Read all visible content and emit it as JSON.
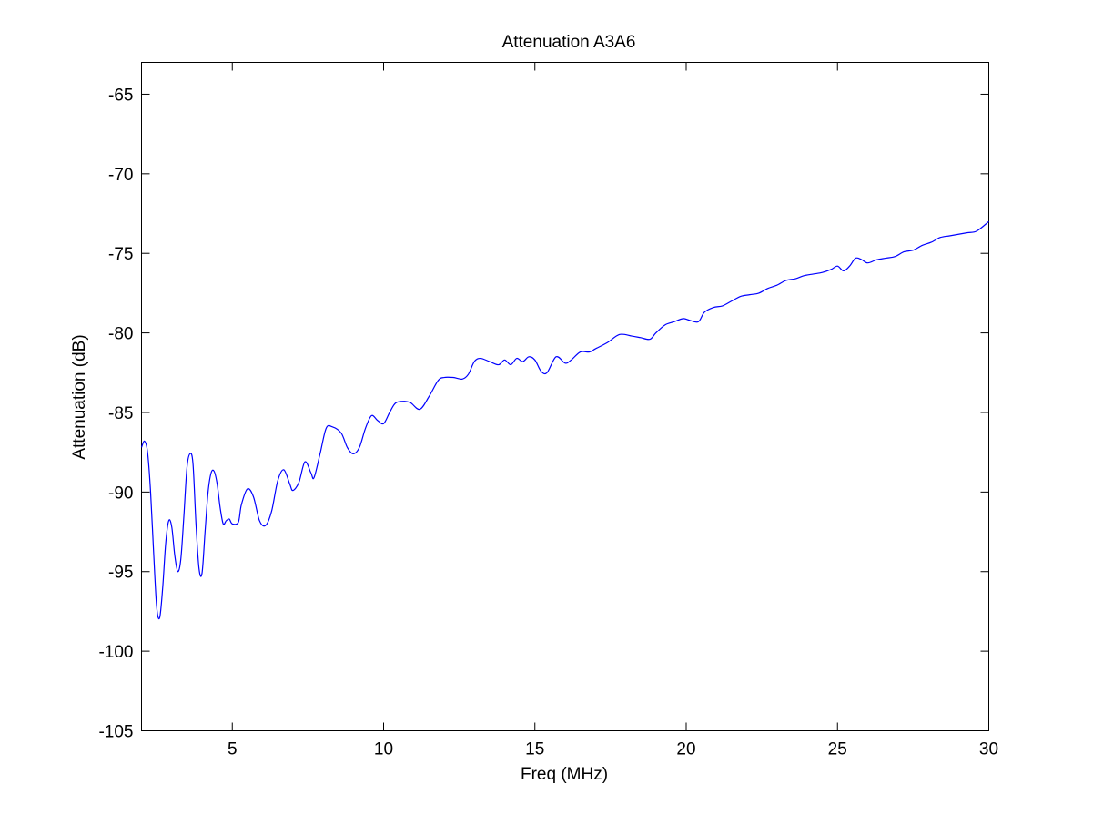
{
  "chart_data": {
    "type": "line",
    "title": "Attenuation A3A6",
    "xlabel": "Freq (MHz)",
    "ylabel": "Attenuation (dB)",
    "xlim": [
      2,
      30
    ],
    "ylim": [
      -105,
      -63
    ],
    "xticks": [
      5,
      10,
      15,
      20,
      25,
      30
    ],
    "yticks": [
      -65,
      -70,
      -75,
      -80,
      -85,
      -90,
      -95,
      -100,
      -105
    ],
    "xtick_labels": [
      "5",
      "10",
      "15",
      "20",
      "25",
      "30"
    ],
    "ytick_labels": [
      "-65",
      "-70",
      "-75",
      "-80",
      "-85",
      "-90",
      "-95",
      "-100",
      "-105"
    ],
    "grid": false,
    "legend": "none",
    "colors": {
      "line": "#0000ff",
      "axes": "#000000",
      "background": "#ffffff"
    },
    "series": [
      {
        "x": [
          2.0,
          2.1,
          2.2,
          2.3,
          2.4,
          2.5,
          2.6,
          2.7,
          2.8,
          2.9,
          3.0,
          3.1,
          3.2,
          3.3,
          3.4,
          3.5,
          3.6,
          3.7,
          3.8,
          3.9,
          4.0,
          4.1,
          4.2,
          4.3,
          4.4,
          4.5,
          4.6,
          4.7,
          4.8,
          4.9,
          5.0,
          5.2,
          5.3,
          5.5,
          5.7,
          5.9,
          6.1,
          6.3,
          6.5,
          6.7,
          6.9,
          7.0,
          7.2,
          7.4,
          7.6,
          7.7,
          7.9,
          8.1,
          8.3,
          8.6,
          8.8,
          9.0,
          9.2,
          9.4,
          9.6,
          9.8,
          10.0,
          10.2,
          10.4,
          10.7,
          10.9,
          11.2,
          11.5,
          11.8,
          12.0,
          12.3,
          12.6,
          12.8,
          13.0,
          13.2,
          13.5,
          13.8,
          14.0,
          14.2,
          14.4,
          14.6,
          14.8,
          15.0,
          15.2,
          15.4,
          15.7,
          16.0,
          16.2,
          16.5,
          16.8,
          17.0,
          17.4,
          17.8,
          18.2,
          18.5,
          18.8,
          19.0,
          19.3,
          19.6,
          19.9,
          20.1,
          20.4,
          20.6,
          20.9,
          21.2,
          21.5,
          21.8,
          22.1,
          22.4,
          22.7,
          23.0,
          23.3,
          23.6,
          23.9,
          24.2,
          24.5,
          24.8,
          25.0,
          25.2,
          25.4,
          25.6,
          25.8,
          26.0,
          26.3,
          26.6,
          26.9,
          27.2,
          27.5,
          27.8,
          28.1,
          28.4,
          28.7,
          29.0,
          29.3,
          29.6,
          30.0
        ],
        "y": [
          -87.2,
          -86.8,
          -87.5,
          -90.0,
          -93.8,
          -97.2,
          -97.9,
          -96.0,
          -93.2,
          -91.8,
          -92.2,
          -94.0,
          -95.0,
          -94.2,
          -91.5,
          -88.5,
          -87.6,
          -88.2,
          -92.0,
          -94.8,
          -95.1,
          -92.5,
          -90.0,
          -88.8,
          -88.7,
          -89.5,
          -91.0,
          -92.0,
          -91.8,
          -91.7,
          -92.0,
          -91.9,
          -90.8,
          -89.8,
          -90.3,
          -91.8,
          -92.1,
          -91.2,
          -89.3,
          -88.6,
          -89.5,
          -89.9,
          -89.4,
          -88.1,
          -88.8,
          -89.1,
          -87.6,
          -86.0,
          -85.9,
          -86.3,
          -87.2,
          -87.6,
          -87.2,
          -86.0,
          -85.2,
          -85.5,
          -85.7,
          -85.0,
          -84.4,
          -84.3,
          -84.4,
          -84.8,
          -84.0,
          -83.0,
          -82.8,
          -82.8,
          -82.9,
          -82.6,
          -81.8,
          -81.6,
          -81.8,
          -82.0,
          -81.7,
          -82.0,
          -81.6,
          -81.8,
          -81.5,
          -81.7,
          -82.4,
          -82.5,
          -81.5,
          -81.9,
          -81.7,
          -81.2,
          -81.2,
          -81.0,
          -80.6,
          -80.1,
          -80.2,
          -80.3,
          -80.4,
          -80.0,
          -79.5,
          -79.3,
          -79.1,
          -79.2,
          -79.3,
          -78.7,
          -78.4,
          -78.3,
          -78.0,
          -77.7,
          -77.6,
          -77.5,
          -77.2,
          -77.0,
          -76.7,
          -76.6,
          -76.4,
          -76.3,
          -76.2,
          -76.0,
          -75.8,
          -76.1,
          -75.8,
          -75.3,
          -75.4,
          -75.6,
          -75.4,
          -75.3,
          -75.2,
          -74.9,
          -74.8,
          -74.5,
          -74.3,
          -74.0,
          -73.9,
          -73.8,
          -73.7,
          -73.6,
          -73.0
        ]
      }
    ]
  }
}
